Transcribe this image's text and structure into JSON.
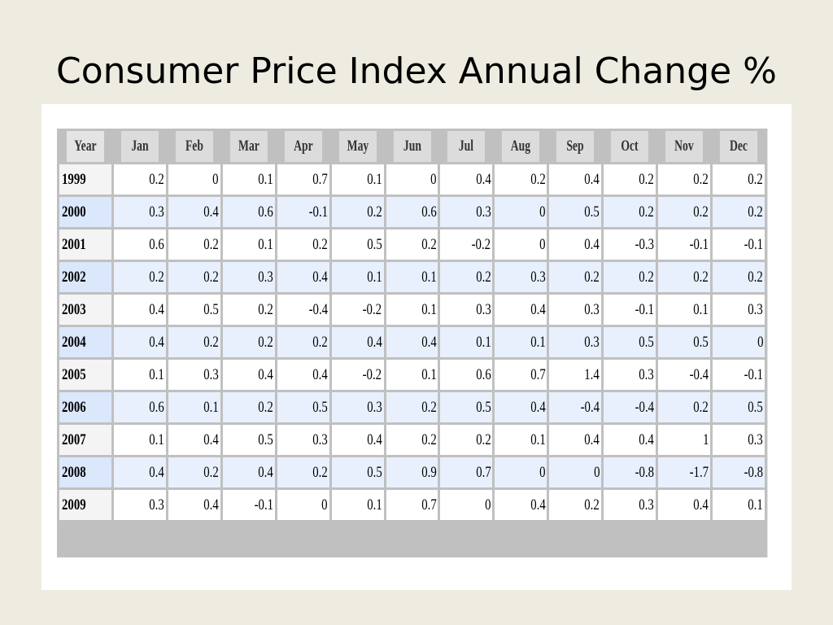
{
  "title": "Consumer Price Index Annual Change %",
  "table": {
    "headers": [
      "Year",
      "Jan",
      "Feb",
      "Mar",
      "Apr",
      "May",
      "Jun",
      "Jul",
      "Aug",
      "Sep",
      "Oct",
      "Nov",
      "Dec"
    ],
    "rows": [
      [
        "1999",
        "0.2",
        "0",
        "0.1",
        "0.7",
        "0.1",
        "0",
        "0.4",
        "0.2",
        "0.4",
        "0.2",
        "0.2",
        "0.2"
      ],
      [
        "2000",
        "0.3",
        "0.4",
        "0.6",
        "-0.1",
        "0.2",
        "0.6",
        "0.3",
        "0",
        "0.5",
        "0.2",
        "0.2",
        "0.2"
      ],
      [
        "2001",
        "0.6",
        "0.2",
        "0.1",
        "0.2",
        "0.5",
        "0.2",
        "-0.2",
        "0",
        "0.4",
        "-0.3",
        "-0.1",
        "-0.1"
      ],
      [
        "2002",
        "0.2",
        "0.2",
        "0.3",
        "0.4",
        "0.1",
        "0.1",
        "0.2",
        "0.3",
        "0.2",
        "0.2",
        "0.2",
        "0.2"
      ],
      [
        "2003",
        "0.4",
        "0.5",
        "0.2",
        "-0.4",
        "-0.2",
        "0.1",
        "0.3",
        "0.4",
        "0.3",
        "-0.1",
        "0.1",
        "0.3"
      ],
      [
        "2004",
        "0.4",
        "0.2",
        "0.2",
        "0.2",
        "0.4",
        "0.4",
        "0.1",
        "0.1",
        "0.3",
        "0.5",
        "0.5",
        "0"
      ],
      [
        "2005",
        "0.1",
        "0.3",
        "0.4",
        "0.4",
        "-0.2",
        "0.1",
        "0.6",
        "0.7",
        "1.4",
        "0.3",
        "-0.4",
        "-0.1"
      ],
      [
        "2006",
        "0.6",
        "0.1",
        "0.2",
        "0.5",
        "0.3",
        "0.2",
        "0.5",
        "0.4",
        "-0.4",
        "-0.4",
        "0.2",
        "0.5"
      ],
      [
        "2007",
        "0.1",
        "0.4",
        "0.5",
        "0.3",
        "0.4",
        "0.2",
        "0.2",
        "0.1",
        "0.4",
        "0.4",
        "1",
        "0.3"
      ],
      [
        "2008",
        "0.4",
        "0.2",
        "0.4",
        "0.2",
        "0.5",
        "0.9",
        "0.7",
        "0",
        "0",
        "-0.8",
        "-1.7",
        "-0.8"
      ],
      [
        "2009",
        "0.3",
        "0.4",
        "-0.1",
        "0",
        "0.1",
        "0.7",
        "0",
        "0.4",
        "0.2",
        "0.3",
        "0.4",
        "0.1"
      ]
    ]
  },
  "colors": {
    "slide_background": "#eeece1",
    "header_background": "#dcdcdc",
    "alt_row_background": "#e8f0fd",
    "grid_line": "#c0c0c0"
  }
}
